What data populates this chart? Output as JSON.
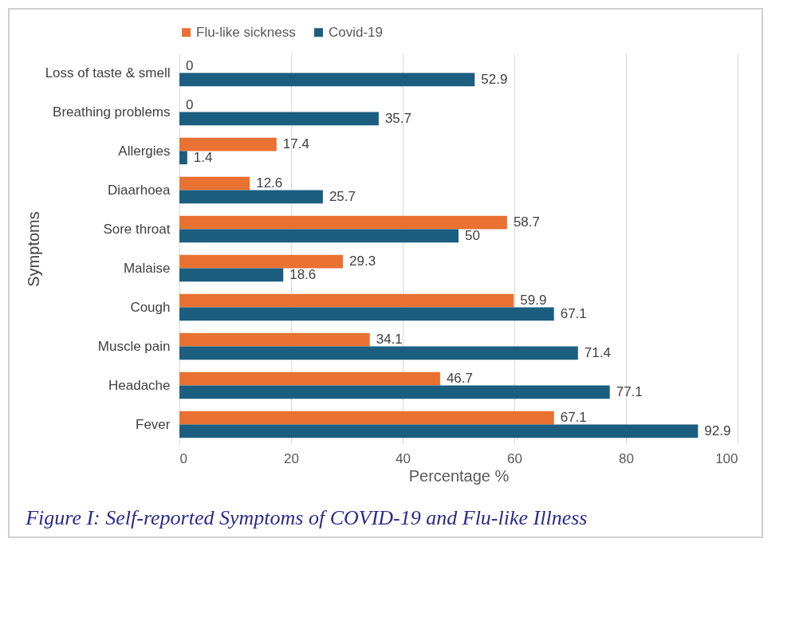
{
  "chart_data": {
    "type": "bar",
    "orientation": "horizontal",
    "title": "Figure I: Self-reported Symptoms of COVID-19 and Flu-like Illness",
    "xlabel": "Percentage %",
    "ylabel": "Symptoms",
    "categories": [
      "Loss of taste & smell",
      "Breathing problems",
      "Allergies",
      "Diaarhoea",
      "Sore throat",
      "Malaise",
      "Cough",
      "Muscle pain",
      "Headache",
      "Fever"
    ],
    "series": [
      {
        "name": "Flu-like sickness",
        "color": "#e97132",
        "values": [
          0,
          0,
          17.4,
          12.6,
          58.7,
          29.3,
          59.9,
          34.1,
          46.7,
          67.1
        ]
      },
      {
        "name": "Covid-19",
        "color": "#1b5e80",
        "values": [
          52.9,
          35.7,
          1.4,
          25.7,
          50,
          18.6,
          67.1,
          71.4,
          77.1,
          92.9
        ]
      }
    ],
    "xlim": [
      0,
      100
    ],
    "xticks": [
      0,
      20,
      40,
      60,
      80,
      100
    ],
    "grid": "x",
    "legend": "top",
    "data_labels": true
  }
}
